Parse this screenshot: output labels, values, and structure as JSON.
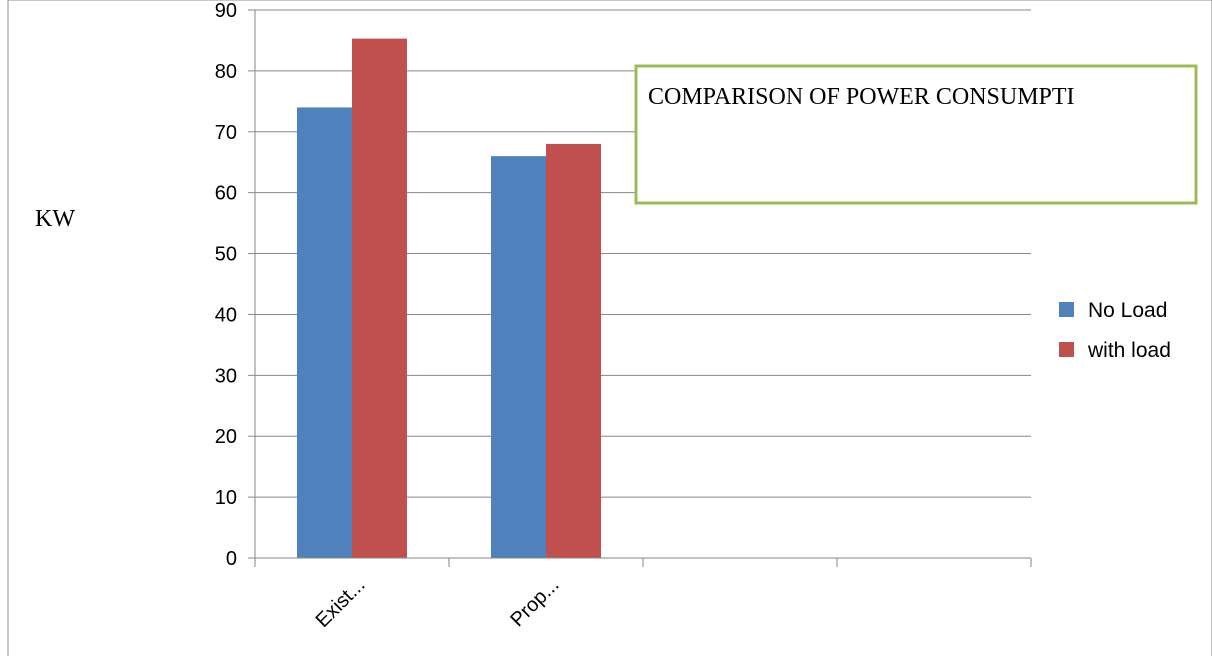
{
  "chart_data": {
    "type": "bar",
    "title": "COMPARISON OF POWER CONSUMPTI",
    "ylabel": "KW",
    "xlabel": "",
    "categories": [
      "Exist...",
      "Prop...",
      "",
      ""
    ],
    "series": [
      {
        "name": "No Load",
        "values": [
          74,
          66,
          null,
          null
        ],
        "color": "#4f81bd"
      },
      {
        "name": "with load",
        "values": [
          85.3,
          68,
          null,
          null
        ],
        "color": "#c0504d"
      }
    ],
    "ylim": [
      0,
      90
    ],
    "yticks": [
      0,
      10,
      20,
      30,
      40,
      50,
      60,
      70,
      80,
      90
    ],
    "grid": true,
    "legend_position": "right",
    "title_box_color": "#9bbb59"
  }
}
